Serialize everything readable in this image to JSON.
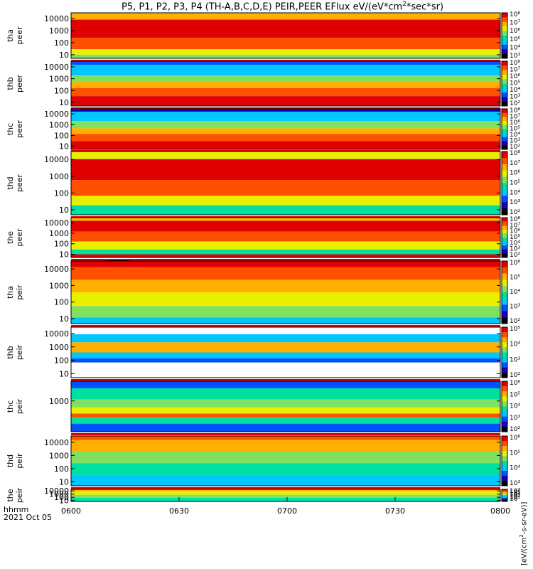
{
  "title": {
    "prefix": "P5, P1, P2, P3, P4 (TH-A,B,C,D,E) PEIR,PEER EFlux eV/(eV*cm",
    "sup": "2",
    "suffix": "*sec*sr)"
  },
  "time_axis": {
    "label_line1": "hhmm",
    "label_line2": "2021 Oct 05",
    "ticks": [
      "0600",
      "0630",
      "0700",
      "0730",
      "0800"
    ]
  },
  "colorbar_units": {
    "prefix": "[eV/(cm",
    "sup": "2",
    "suffix": "-s-sr-eV)]"
  },
  "colors": {
    "scale": [
      "#000000",
      "#1a00b0",
      "#0050ff",
      "#00c8ff",
      "#00e0a0",
      "#80e060",
      "#e8f000",
      "#ffb000",
      "#ff5000",
      "#e00000"
    ],
    "fill_flag": "#e00000",
    "background": "#ffffff"
  },
  "chart_data": {
    "type": "heatmap",
    "x_range": [
      "0600",
      "0800"
    ],
    "y_scale": "log",
    "panels": [
      {
        "probe": "tha",
        "species": "peer",
        "ylabel_line1": "tha",
        "ylabel_line2": "peer",
        "yticks": [
          "10000",
          "1000",
          "100",
          "10"
        ],
        "ylim": [
          5,
          30000
        ],
        "cbar_ticks": [
          "10⁸",
          "10⁷",
          "10⁶",
          "10⁵",
          "10⁴",
          "10³"
        ]
      },
      {
        "probe": "thb",
        "species": "peer",
        "ylabel_line1": "thb",
        "ylabel_line2": "peer",
        "yticks": [
          "10000",
          "1000",
          "100",
          "10"
        ],
        "ylim": [
          5,
          30000
        ],
        "cbar_ticks": [
          "10⁸",
          "10⁷",
          "10⁶",
          "10⁵",
          "10⁴",
          "10³",
          "10²"
        ]
      },
      {
        "probe": "thc",
        "species": "peer",
        "ylabel_line1": "thc",
        "ylabel_line2": "peer",
        "yticks": [
          "10000",
          "1000",
          "100",
          "10"
        ],
        "ylim": [
          5,
          30000
        ],
        "cbar_ticks": [
          "10⁸",
          "10⁷",
          "10⁶",
          "10⁵",
          "10⁴",
          "10³",
          "10²"
        ]
      },
      {
        "probe": "thd",
        "species": "peer",
        "ylabel_line1": "thd",
        "ylabel_line2": "peer",
        "yticks": [
          "10000",
          "1000",
          "100",
          "10"
        ],
        "ylim": [
          5,
          30000
        ],
        "cbar_ticks": [
          "10⁸",
          "10⁷",
          "10⁶",
          "10⁵",
          "10⁴",
          "10³",
          "10²"
        ]
      },
      {
        "probe": "the",
        "species": "peer",
        "ylabel_line1": "the",
        "ylabel_line2": "peer",
        "yticks": [
          "10000",
          "1000",
          "100",
          "10"
        ],
        "ylim": [
          5,
          30000
        ],
        "cbar_ticks": [
          "10⁸",
          "10⁷",
          "10⁶",
          "10⁵",
          "10⁴",
          "10³",
          "10²"
        ]
      },
      {
        "probe": "tha",
        "species": "peir",
        "ylabel_line1": "tha",
        "ylabel_line2": "peir",
        "yticks": [
          "10000",
          "1000",
          "100",
          "10"
        ],
        "ylim": [
          5,
          30000
        ],
        "cbar_ticks": [
          "10⁶",
          "10⁵",
          "10⁴",
          "10³",
          "10²"
        ]
      },
      {
        "probe": "thb",
        "species": "peir",
        "ylabel_line1": "thb",
        "ylabel_line2": "peir",
        "yticks": [
          "10000",
          "1000",
          "100",
          "10"
        ],
        "ylim": [
          5,
          30000
        ],
        "cbar_ticks": [
          "10⁵",
          "10⁴",
          "10³",
          "10²"
        ]
      },
      {
        "probe": "thc",
        "species": "peir",
        "ylabel_line1": "thc",
        "ylabel_line2": "peir",
        "yticks": [
          "1000"
        ],
        "ylim": [
          5,
          30000
        ],
        "cbar_ticks": [
          "10⁶",
          "10⁵",
          "10⁴",
          "10³",
          "10²"
        ]
      },
      {
        "probe": "thd",
        "species": "peir",
        "ylabel_line1": "thd",
        "ylabel_line2": "peir",
        "yticks": [
          "10000",
          "1000",
          "100",
          "10"
        ],
        "ylim": [
          5,
          30000
        ],
        "cbar_ticks": [
          "10⁶",
          "10⁵",
          "10⁴",
          "10³"
        ]
      },
      {
        "probe": "the",
        "species": "peir",
        "ylabel_line1": "the",
        "ylabel_line2": "peir",
        "yticks": [
          "10000",
          "1000",
          "100",
          "10"
        ],
        "ylim": [
          5,
          30000
        ],
        "cbar_ticks": [
          "10⁷",
          "10⁶",
          "10⁵",
          "10⁴",
          "10³",
          "10²",
          "10¹"
        ]
      }
    ]
  }
}
